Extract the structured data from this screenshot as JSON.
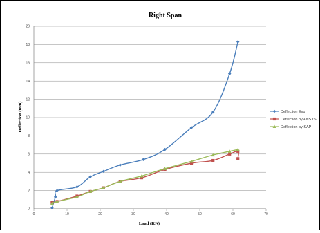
{
  "chart_data": {
    "type": "line",
    "title": "Right Span",
    "xlabel": "Load (KN)",
    "ylabel": "Deflection (mm)",
    "xlim": [
      0,
      70
    ],
    "ylim": [
      0,
      20
    ],
    "xticks": [
      "0",
      "10",
      "20",
      "30",
      "40",
      "50",
      "60",
      "70"
    ],
    "yticks": [
      "0",
      "2",
      "4",
      "6",
      "8",
      "10",
      "12",
      "14",
      "16",
      "18",
      "20"
    ],
    "grid": "horizontal",
    "legend_position": "right",
    "series": [
      {
        "name": "Deflection Exp",
        "color": "#4a7ebb",
        "marker": "diamond",
        "x": [
          5.5,
          6.5,
          7,
          13,
          17,
          21,
          26,
          33,
          39.5,
          47.5,
          54,
          59,
          61.5
        ],
        "y": [
          0.1,
          1.3,
          2.0,
          2.4,
          3.5,
          4.1,
          4.8,
          5.4,
          6.5,
          8.9,
          10.6,
          14.8,
          18.3
        ]
      },
      {
        "name": "Deflection by ANSYS",
        "color": "#c0504d",
        "marker": "square",
        "x": [
          5.5,
          7,
          13,
          17,
          21,
          26,
          32.5,
          39.5,
          47.5,
          54,
          59,
          61.5,
          61.5
        ],
        "y": [
          0.7,
          0.8,
          1.4,
          1.9,
          2.3,
          3.0,
          3.4,
          4.3,
          5.0,
          5.3,
          6.0,
          6.3,
          5.5
        ]
      },
      {
        "name": "Deflection by SAP",
        "color": "#9bbb59",
        "marker": "triangle",
        "x": [
          5.5,
          7,
          13,
          17,
          21,
          26,
          32.5,
          39.5,
          47.5,
          54,
          59,
          61.5
        ],
        "y": [
          0.6,
          0.8,
          1.3,
          1.9,
          2.3,
          3.0,
          3.6,
          4.4,
          5.2,
          5.9,
          6.3,
          6.5
        ]
      }
    ]
  }
}
